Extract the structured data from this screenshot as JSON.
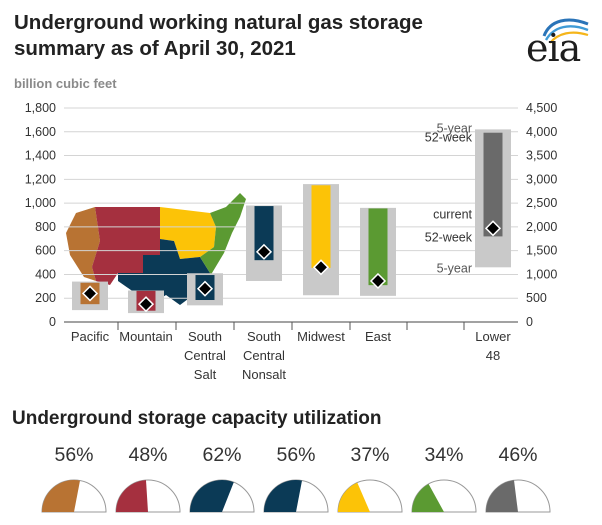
{
  "page": {
    "title": "Underground working natural gas storage summary as of April 30, 2021",
    "unit_label": "billion cubic feet",
    "logo_text": "eia",
    "utilization_title": "Underground storage capacity utilization"
  },
  "chart_data": {
    "type": "range-bar",
    "left_axis": {
      "min": 0,
      "max": 1800,
      "ticks": [
        "0",
        "200",
        "400",
        "600",
        "800",
        "1,000",
        "1,200",
        "1,400",
        "1,600",
        "1,800"
      ]
    },
    "right_axis": {
      "min": 0,
      "max": 4500,
      "ticks": [
        "0",
        "500",
        "1,000",
        "1,500",
        "2,000",
        "2,500",
        "3,000",
        "3,500",
        "4,000",
        "4,500"
      ]
    },
    "grid": true,
    "categories": [
      {
        "label": [
          "Pacific"
        ],
        "axis": "left",
        "color": "#b87333",
        "five_year": [
          100,
          340
        ],
        "fifty_two_week": [
          150,
          330
        ],
        "current": 240
      },
      {
        "label": [
          "Mountain"
        ],
        "axis": "left",
        "color": "#a5303f",
        "five_year": [
          75,
          265
        ],
        "fifty_two_week": [
          95,
          262
        ],
        "current": 150
      },
      {
        "label": [
          "South",
          "Central",
          "Salt"
        ],
        "axis": "left",
        "color": "#0b3a56",
        "five_year": [
          140,
          410
        ],
        "fifty_two_week": [
          185,
          395
        ],
        "current": 280
      },
      {
        "label": [
          "South",
          "Central",
          "Nonsalt"
        ],
        "axis": "left",
        "color": "#0b3a56",
        "five_year": [
          345,
          980
        ],
        "fifty_two_week": [
          520,
          975
        ],
        "current": 590
      },
      {
        "label": [
          "Midwest"
        ],
        "axis": "left",
        "color": "#fcc307",
        "five_year": [
          225,
          1160
        ],
        "fifty_two_week": [
          455,
          1150
        ],
        "current": 460
      },
      {
        "label": [
          "East"
        ],
        "axis": "left",
        "color": "#5b9a32",
        "five_year": [
          220,
          960
        ],
        "fifty_two_week": [
          310,
          955
        ],
        "current": 345
      },
      {
        "label": [
          "Lower",
          "48"
        ],
        "axis": "right",
        "color": "#6a6a6a",
        "five_year": [
          1150,
          4050
        ],
        "fifty_two_week": [
          1800,
          3980
        ],
        "current": 1970
      }
    ],
    "annotations": {
      "five_year": "5-year",
      "fifty_two_week": "52-week",
      "current": "current"
    }
  },
  "utilization": [
    {
      "label": "56%",
      "value": 0.56,
      "color": "#b87333"
    },
    {
      "label": "48%",
      "value": 0.48,
      "color": "#a5303f"
    },
    {
      "label": "62%",
      "value": 0.62,
      "color": "#0b3a56"
    },
    {
      "label": "56%",
      "value": 0.56,
      "color": "#0b3a56"
    },
    {
      "label": "37%",
      "value": 0.37,
      "color": "#fcc307"
    },
    {
      "label": "34%",
      "value": 0.34,
      "color": "#5b9a32"
    },
    {
      "label": "46%",
      "value": 0.46,
      "color": "#6a6a6a"
    }
  ]
}
